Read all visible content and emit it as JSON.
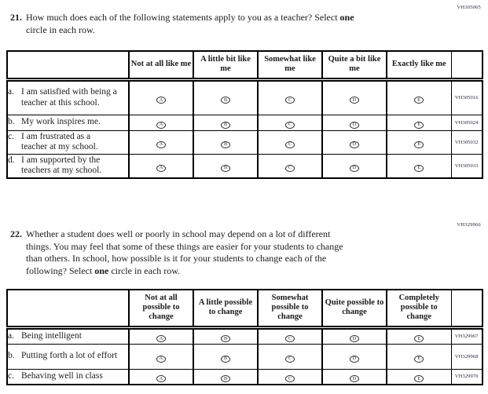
{
  "shared": {
    "bubble_letters": [
      "A",
      "B",
      "C",
      "D",
      "E"
    ],
    "ink_color": "#1b1b1b",
    "border_color": "#000000"
  },
  "questions": [
    {
      "number": "21.",
      "code": "VH305005",
      "prompt_lines": [
        [
          {
            "text": "How much does each of the following statements apply to you as a teacher? Select ",
            "bold": false
          },
          {
            "text": "one",
            "bold": true
          }
        ],
        [
          {
            "text": "circle in each row.",
            "bold": false
          }
        ]
      ],
      "columns": [
        "Not at all like me",
        "A little bit like me",
        "Somewhat like me",
        "Quite a bit like me",
        "Exactly like me"
      ],
      "rows": [
        {
          "letter": "a.",
          "statement": "I am satisfied with being a teacher at this school.",
          "code": "VH305016"
        },
        {
          "letter": "b.",
          "statement": "My work inspires me.",
          "code": "VH305024"
        },
        {
          "letter": "c.",
          "statement": "I am frustrated as a teacher at my school.",
          "code": "VH305032"
        },
        {
          "letter": "d.",
          "statement": "I am supported by the teachers at my school.",
          "code": "VH305033"
        }
      ]
    },
    {
      "number": "22.",
      "code": "VH329966",
      "prompt_lines": [
        [
          {
            "text": "Whether a student does well or poorly in school may depend on a lot of different",
            "bold": false
          }
        ],
        [
          {
            "text": "things. You may feel that some of these things are easier for your students to change",
            "bold": false
          }
        ],
        [
          {
            "text": "than others. In school, how possible is it for your students to change each of the",
            "bold": false
          }
        ],
        [
          {
            "text": "following? Select ",
            "bold": false
          },
          {
            "text": "one",
            "bold": true
          },
          {
            "text": " circle in each row.",
            "bold": false
          }
        ]
      ],
      "columns": [
        "Not at all possible to change",
        "A little possible to change",
        "Somewhat possible to change",
        "Quite possible to change",
        "Completely possible to change"
      ],
      "rows": [
        {
          "letter": "a.",
          "statement": "Being intelligent",
          "code": "VH329967"
        },
        {
          "letter": "b.",
          "statement": "Putting forth a lot of effort",
          "code": "VH329968"
        },
        {
          "letter": "c.",
          "statement": "Behaving well in class",
          "code": "VH329970"
        }
      ]
    }
  ]
}
